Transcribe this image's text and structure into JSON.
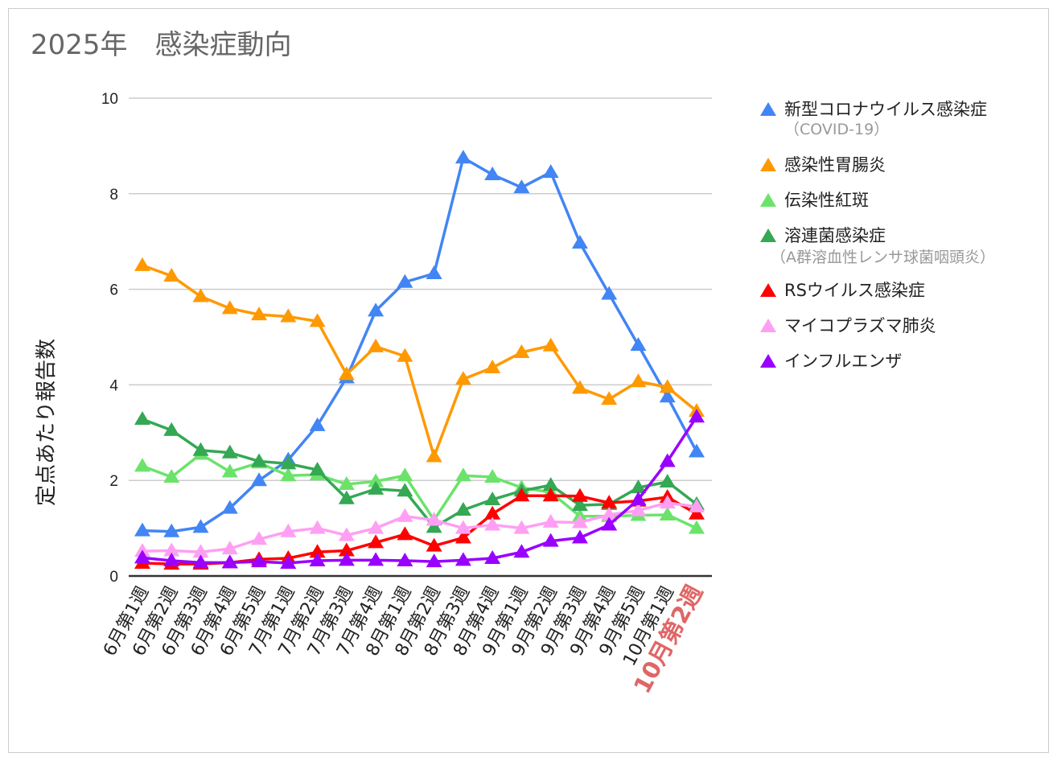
{
  "title": "2025年　感染症動向",
  "chart_data": {
    "type": "line",
    "title": "2025年　感染症動向",
    "ylabel": "定点あたり報告数",
    "xlabel": "",
    "ylim": [
      0,
      10
    ],
    "yticks": [
      "0",
      "2",
      "4",
      "6",
      "8",
      "10"
    ],
    "grid": true,
    "legend_position": "right",
    "marker": "triangle",
    "categories": [
      "6月第1週",
      "6月第2週",
      "6月第3週",
      "6月第4週",
      "6月第5週",
      "7月第1週",
      "7月第2週",
      "7月第3週",
      "7月第4週",
      "8月第1週",
      "8月第2週",
      "8月第3週",
      "8月第4週",
      "9月第1週",
      "9月第2週",
      "9月第3週",
      "9月第4週",
      "9月第5週",
      "10月第1週",
      "10月第2週"
    ],
    "highlight_category": {
      "label": "10月第2週",
      "color": "#e06666"
    },
    "series": [
      {
        "name": "新型コロナウイルス感染症",
        "sublabel": "（COVID-19）",
        "color": "#4285f4",
        "values": [
          0.95,
          0.93,
          1.02,
          1.42,
          2.0,
          2.43,
          3.15,
          4.15,
          5.55,
          6.15,
          6.33,
          8.75,
          8.4,
          8.13,
          8.45,
          6.97,
          5.9,
          4.83,
          3.75,
          2.6
        ]
      },
      {
        "name": "感染性胃腸炎",
        "color": "#ff9900",
        "values": [
          6.5,
          6.28,
          5.85,
          5.6,
          5.47,
          5.43,
          5.33,
          4.22,
          4.8,
          4.6,
          2.5,
          4.12,
          4.36,
          4.68,
          4.82,
          3.93,
          3.7,
          4.07,
          3.95,
          3.45
        ]
      },
      {
        "name": "伝染性紅斑",
        "color": "#6be36b",
        "values": [
          2.3,
          2.07,
          2.55,
          2.18,
          2.37,
          2.1,
          2.12,
          1.92,
          1.98,
          2.1,
          1.17,
          2.1,
          2.07,
          1.85,
          1.75,
          1.25,
          1.25,
          1.27,
          1.28,
          1.0
        ]
      },
      {
        "name": "溶連菌感染症",
        "sublabel": "（A群溶血性レンサ球菌咽頭炎）",
        "color": "#34a853",
        "values": [
          3.28,
          3.05,
          2.63,
          2.58,
          2.4,
          2.35,
          2.22,
          1.62,
          1.82,
          1.78,
          1.02,
          1.38,
          1.6,
          1.78,
          1.9,
          1.48,
          1.5,
          1.85,
          1.97,
          1.5
        ]
      },
      {
        "name": "RSウイルス感染症",
        "color": "#ff0000",
        "values": [
          0.27,
          0.25,
          0.25,
          0.28,
          0.35,
          0.37,
          0.5,
          0.53,
          0.7,
          0.87,
          0.63,
          0.8,
          1.3,
          1.68,
          1.68,
          1.67,
          1.53,
          1.57,
          1.65,
          1.3
        ]
      },
      {
        "name": "マイコプラズマ肺炎",
        "color": "#ff9ff3",
        "values": [
          0.52,
          0.53,
          0.5,
          0.57,
          0.77,
          0.93,
          1.0,
          0.85,
          1.0,
          1.25,
          1.17,
          1.0,
          1.07,
          1.0,
          1.13,
          1.12,
          1.28,
          1.37,
          1.53,
          1.45
        ]
      },
      {
        "name": "インフルエンザ",
        "color": "#9900ff",
        "values": [
          0.38,
          0.32,
          0.28,
          0.28,
          0.3,
          0.27,
          0.32,
          0.33,
          0.33,
          0.32,
          0.3,
          0.33,
          0.37,
          0.5,
          0.73,
          0.8,
          1.07,
          1.6,
          2.4,
          3.33
        ]
      }
    ]
  }
}
